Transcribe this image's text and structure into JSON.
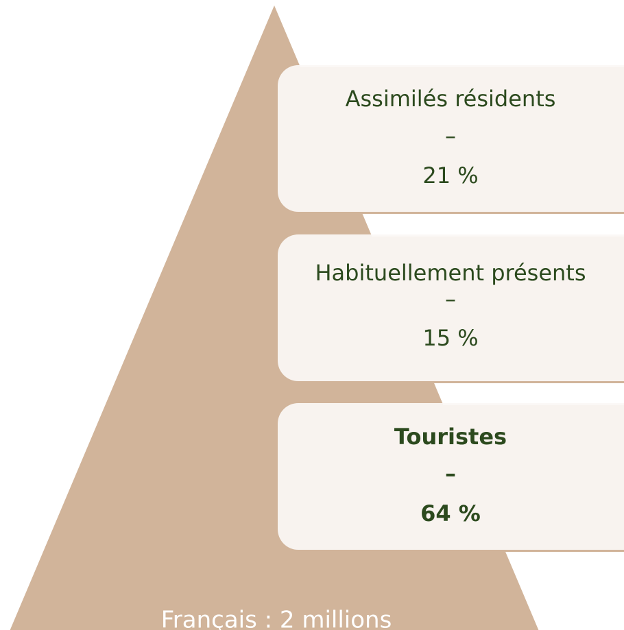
{
  "boxes": [
    {
      "label": "Assimilés résidents",
      "separator": "–",
      "value": "21 %",
      "bold": false
    },
    {
      "label": "Habituellement présents",
      "separator": "–",
      "value": "15 %",
      "bold": false
    },
    {
      "label": "Touristes",
      "separator": "–",
      "value": "64 %",
      "bold": true
    }
  ],
  "footer": "Français : 2 millions"
}
